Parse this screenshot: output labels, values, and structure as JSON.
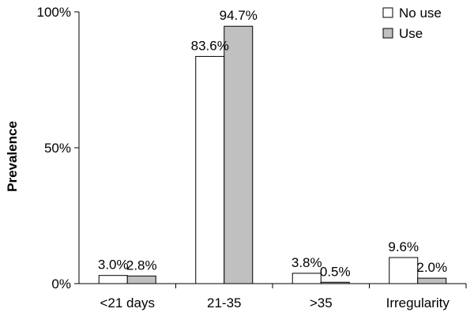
{
  "chart_data": {
    "type": "bar",
    "title": "",
    "xlabel": "",
    "ylabel": "Prevalence",
    "ylim": [
      0,
      100
    ],
    "y_ticks": [
      {
        "value": 0,
        "label": "0%"
      },
      {
        "value": 50,
        "label": "50%"
      },
      {
        "value": 100,
        "label": "100%"
      }
    ],
    "grid": false,
    "legend_position": "top-right",
    "categories": [
      "<21 days",
      "21-35",
      ">35",
      "Irregularity"
    ],
    "series": [
      {
        "name": "No use",
        "color": "#ffffff",
        "values": [
          3.0,
          83.6,
          3.8,
          9.6
        ],
        "labels": [
          "3.0%",
          "83.6%",
          "3.8%",
          "9.6%"
        ]
      },
      {
        "name": "Use",
        "color": "#c0c0c0",
        "values": [
          2.8,
          94.7,
          0.5,
          2.0
        ],
        "labels": [
          "2.8%",
          "94.7%",
          "0.5%",
          "2.0%"
        ]
      }
    ]
  }
}
